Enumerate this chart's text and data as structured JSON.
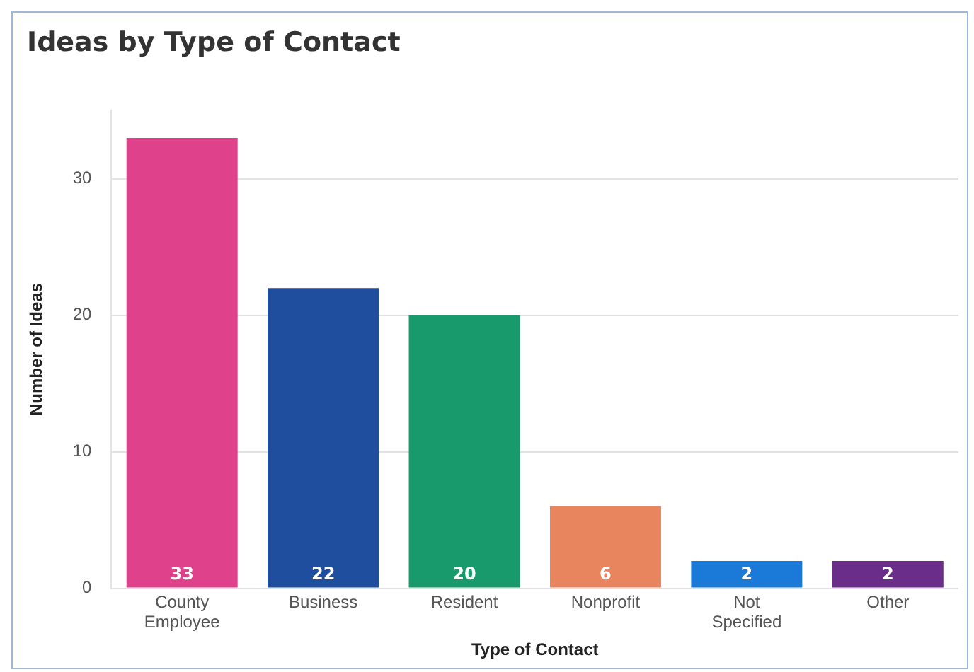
{
  "chart_data": {
    "type": "bar",
    "title": "Ideas by Type of Contact",
    "xlabel": "Type of Contact",
    "ylabel": "Number of Ideas",
    "categories": [
      "County Employee",
      "Business",
      "Resident",
      "Nonprofit",
      "Not Specified",
      "Other"
    ],
    "values": [
      33,
      22,
      20,
      6,
      2,
      2
    ],
    "colors": [
      "#e0418b",
      "#1f4e9e",
      "#199a6c",
      "#e8855f",
      "#1b7ad8",
      "#6a2d8a"
    ],
    "ylim": [
      0,
      35
    ],
    "yticks": [
      0,
      10,
      20,
      30
    ],
    "grid": "y",
    "data_labels": true,
    "legend": false
  }
}
